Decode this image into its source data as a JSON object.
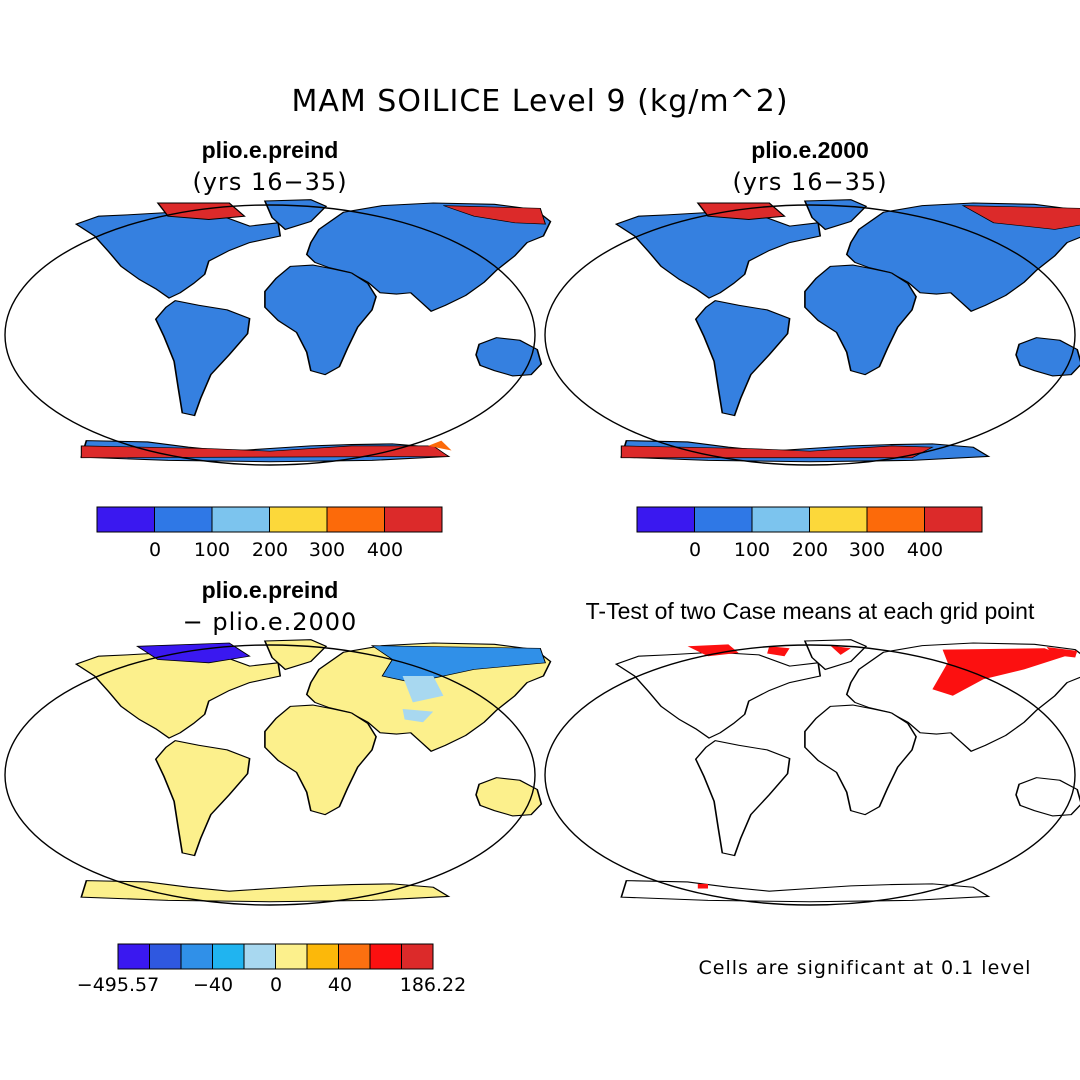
{
  "title": "MAM SOILICE Level 9 (kg/m^2)",
  "panels": [
    {
      "title": "plio.e.preind",
      "subtitle": "(yrs 16−35)",
      "land_color": "#3580e0",
      "colorbar": {
        "colors": [
          "#3a18f0",
          "#2f78e6",
          "#7cc4ee",
          "#fcd83a",
          "#fc6a0a",
          "#dc2a2a"
        ],
        "labels": [
          "0",
          "100",
          "200",
          "300",
          "400"
        ]
      }
    },
    {
      "title": "plio.e.2000",
      "subtitle": "(yrs 16−35)",
      "land_color": "#3580e0",
      "colorbar": {
        "colors": [
          "#3a18f0",
          "#2f78e6",
          "#7cc4ee",
          "#fcd83a",
          "#fc6a0a",
          "#dc2a2a"
        ],
        "labels": [
          "0",
          "100",
          "200",
          "300",
          "400"
        ]
      }
    },
    {
      "title": "plio.e.preind",
      "subtitle": "− plio.e.2000",
      "land_color": "#fcf08c",
      "colorbar": {
        "colors": [
          "#3a18f0",
          "#2f58e0",
          "#3090e8",
          "#20b4f0",
          "#a8d8f0",
          "#fcf08c",
          "#fcb80a",
          "#fc7010",
          "#fc1010",
          "#dc2a2a"
        ],
        "labels": [
          "−495.57",
          "−40",
          "0",
          "40",
          "186.22"
        ]
      }
    },
    {
      "title": "T-Test of two Case means at each grid point",
      "land_color": "#ffffff",
      "note": "Cells are significant at 0.1 level"
    }
  ]
}
